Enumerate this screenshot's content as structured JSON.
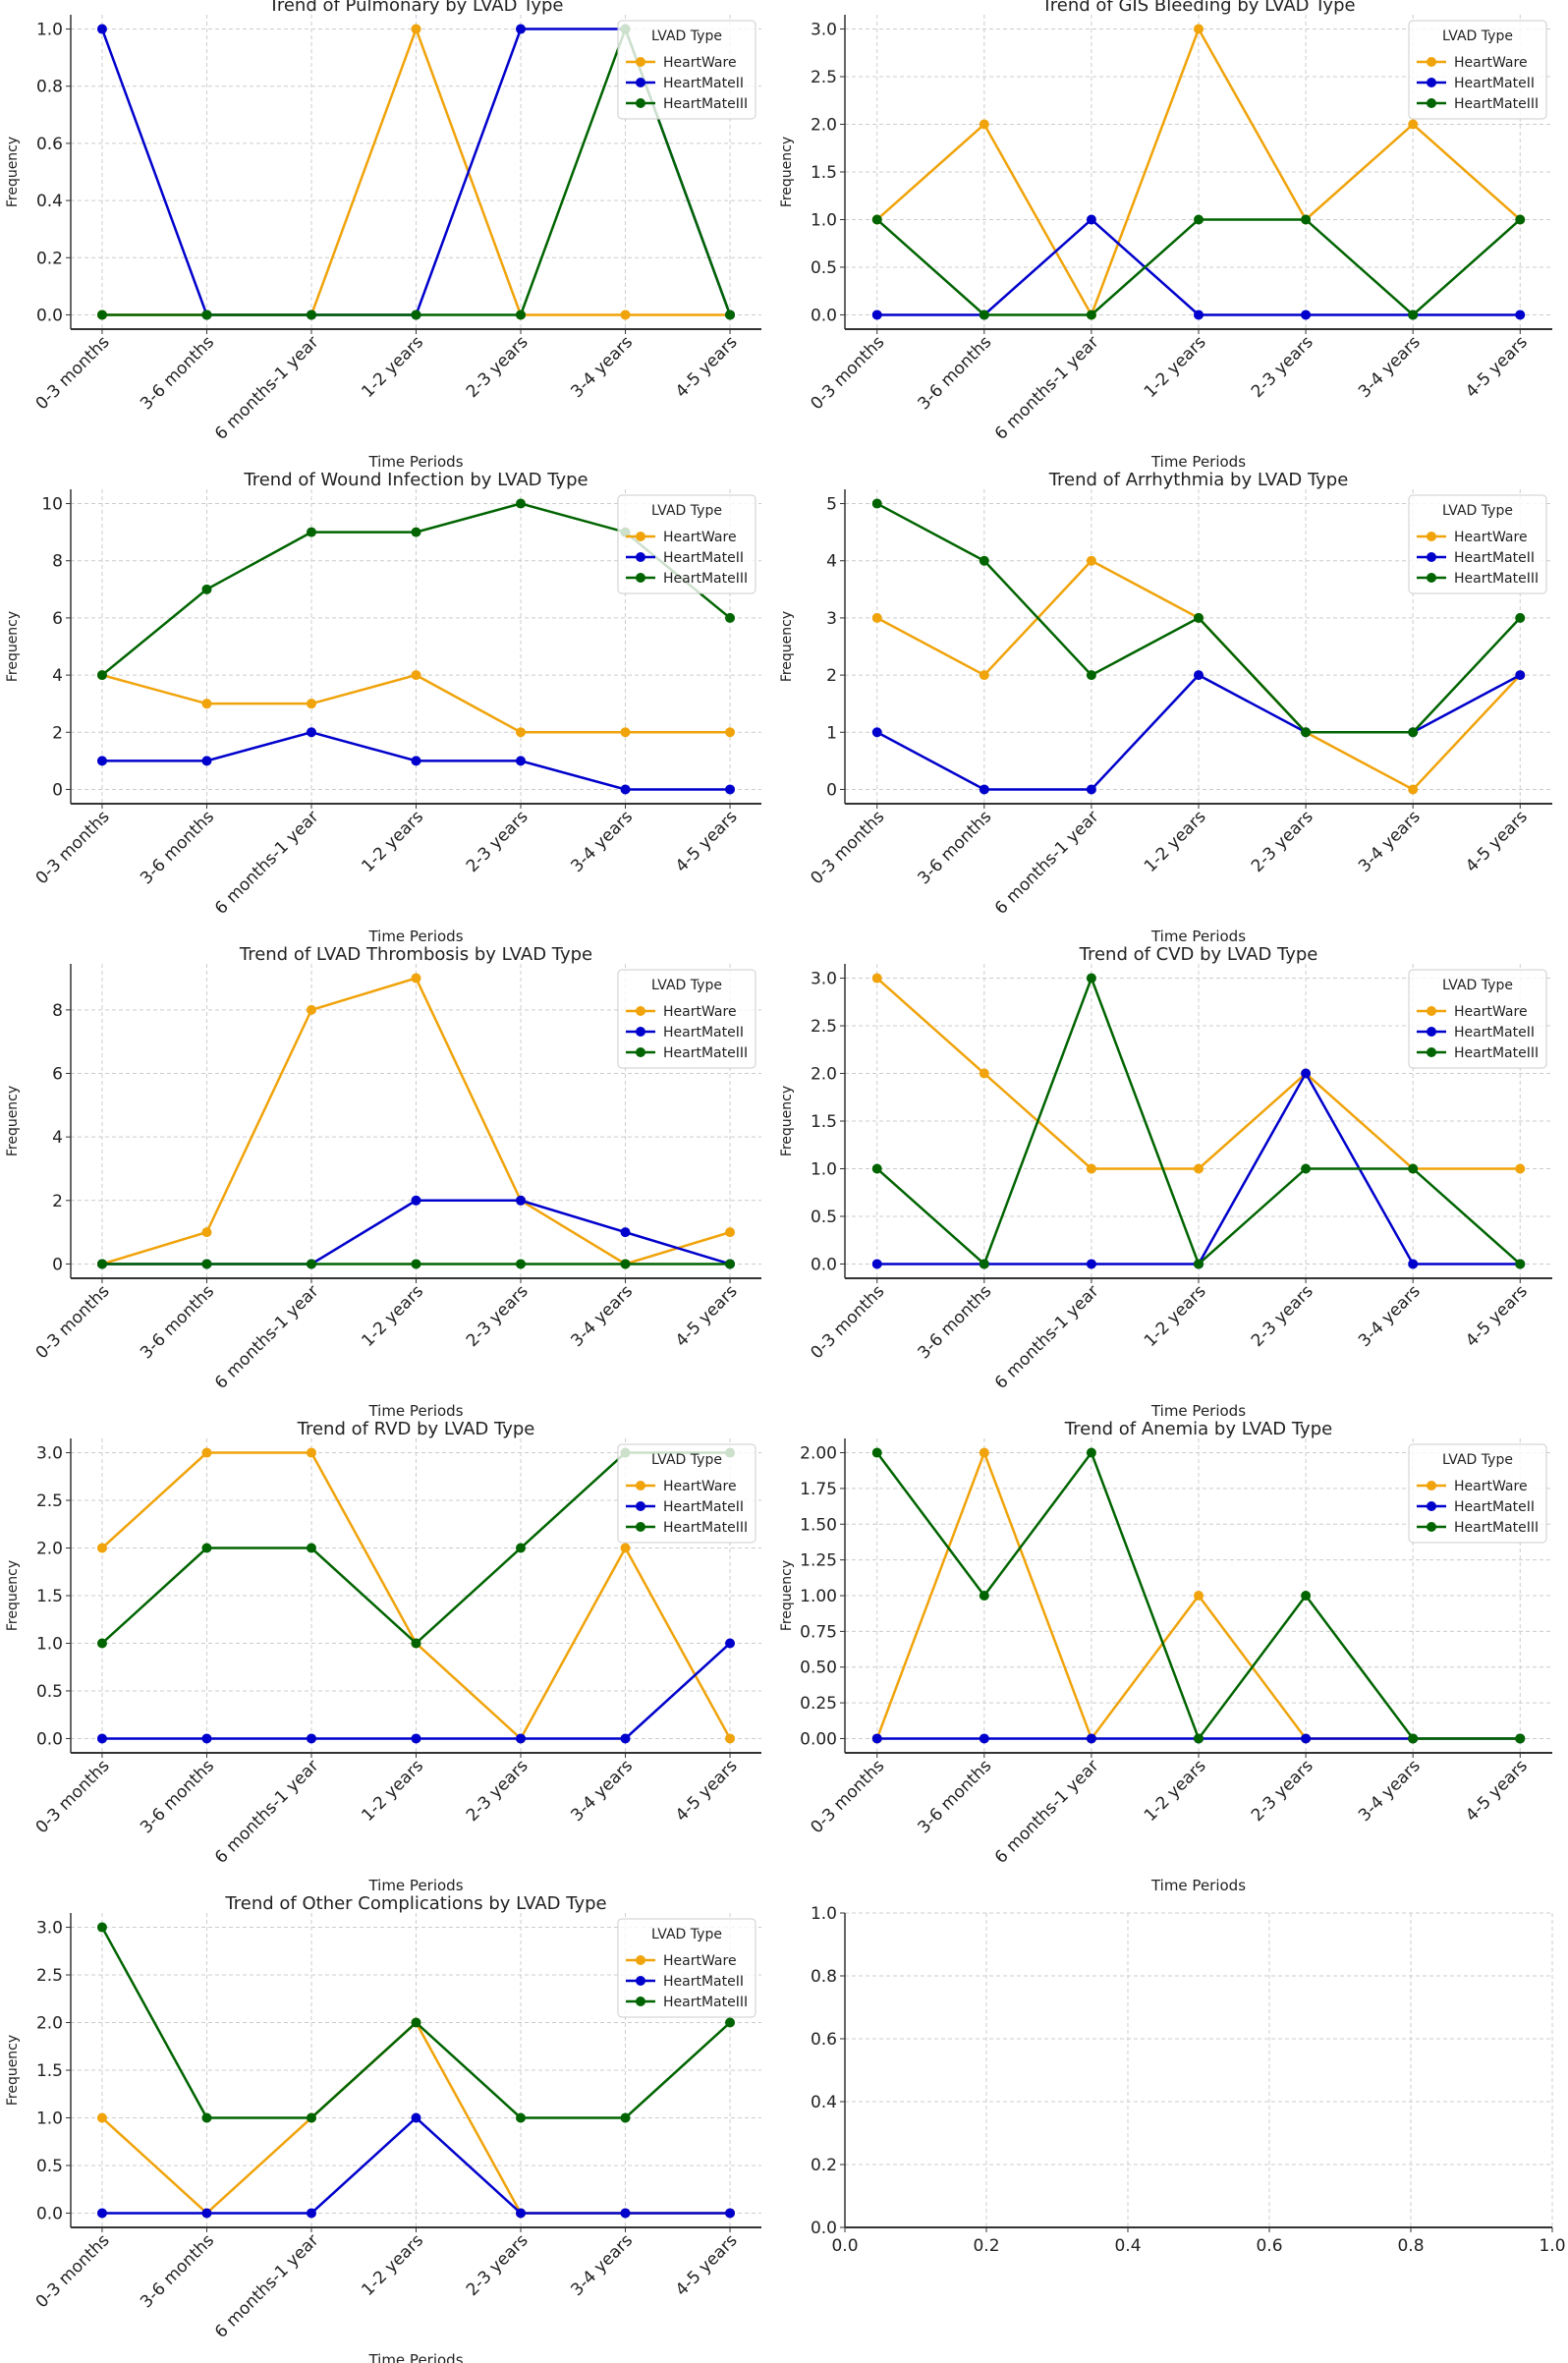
{
  "colors": {
    "HeartWare": "#f0a30a",
    "HeartMateII": "#0000cc",
    "HeartMateIII": "#006400",
    "grid": "#cccccc"
  },
  "chart_data": [
    {
      "type": "line",
      "title": "Trend of Pulmonary by LVAD Type",
      "xlabel": "Time Periods",
      "ylabel": "Frequency",
      "legend_title": "LVAD Type",
      "legend": "top-right",
      "grid": true,
      "categories": [
        "0-3 months",
        "3-6 months",
        "6 months-1 year",
        "1-2 years",
        "2-3 years",
        "3-4 years",
        "4-5 years"
      ],
      "yticks": [
        0.0,
        0.2,
        0.4,
        0.6,
        0.8,
        1.0
      ],
      "ytick_labels": [
        "0.0",
        "0.2",
        "0.4",
        "0.6",
        "0.8",
        "1.0"
      ],
      "ylim": [
        -0.05,
        1.05
      ],
      "series": [
        {
          "name": "HeartWare",
          "values": [
            0,
            0,
            0,
            1,
            0,
            0,
            0
          ]
        },
        {
          "name": "HeartMateII",
          "values": [
            1,
            0,
            0,
            0,
            1,
            1,
            0
          ]
        },
        {
          "name": "HeartMateIII",
          "values": [
            0,
            0,
            0,
            0,
            0,
            1,
            0
          ]
        }
      ]
    },
    {
      "type": "line",
      "title": "Trend of GIS Bleeding by LVAD Type",
      "xlabel": "Time Periods",
      "ylabel": "Frequency",
      "legend_title": "LVAD Type",
      "legend": "top-right",
      "grid": true,
      "categories": [
        "0-3 months",
        "3-6 months",
        "6 months-1 year",
        "1-2 years",
        "2-3 years",
        "3-4 years",
        "4-5 years"
      ],
      "yticks": [
        0,
        0.5,
        1,
        1.5,
        2,
        2.5,
        3
      ],
      "ytick_labels": [
        "0.0",
        "0.5",
        "1.0",
        "1.5",
        "2.0",
        "2.5",
        "3.0"
      ],
      "ylim": [
        -0.15,
        3.15
      ],
      "series": [
        {
          "name": "HeartWare",
          "values": [
            1,
            2,
            0,
            3,
            1,
            2,
            1
          ]
        },
        {
          "name": "HeartMateII",
          "values": [
            0,
            0,
            1,
            0,
            0,
            0,
            0
          ]
        },
        {
          "name": "HeartMateIII",
          "values": [
            1,
            0,
            0,
            1,
            1,
            0,
            1
          ]
        }
      ]
    },
    {
      "type": "line",
      "title": "Trend of Wound Infection by LVAD Type",
      "xlabel": "Time Periods",
      "ylabel": "Frequency",
      "legend_title": "LVAD Type",
      "legend": "top-right",
      "grid": true,
      "categories": [
        "0-3 months",
        "3-6 months",
        "6 months-1 year",
        "1-2 years",
        "2-3 years",
        "3-4 years",
        "4-5 years"
      ],
      "yticks": [
        0,
        2,
        4,
        6,
        8,
        10
      ],
      "ytick_labels": [
        "0",
        "2",
        "4",
        "6",
        "8",
        "10"
      ],
      "ylim": [
        -0.5,
        10.5
      ],
      "series": [
        {
          "name": "HeartWare",
          "values": [
            4,
            3,
            3,
            4,
            2,
            2,
            2
          ]
        },
        {
          "name": "HeartMateII",
          "values": [
            1,
            1,
            2,
            1,
            1,
            0,
            0
          ]
        },
        {
          "name": "HeartMateIII",
          "values": [
            4,
            7,
            9,
            9,
            10,
            9,
            6
          ]
        }
      ]
    },
    {
      "type": "line",
      "title": "Trend of Arrhythmia by LVAD Type",
      "xlabel": "Time Periods",
      "ylabel": "Frequency",
      "legend_title": "LVAD Type",
      "legend": "top-right",
      "grid": true,
      "categories": [
        "0-3 months",
        "3-6 months",
        "6 months-1 year",
        "1-2 years",
        "2-3 years",
        "3-4 years",
        "4-5 years"
      ],
      "yticks": [
        0,
        1,
        2,
        3,
        4,
        5
      ],
      "ytick_labels": [
        "0",
        "1",
        "2",
        "3",
        "4",
        "5"
      ],
      "ylim": [
        -0.25,
        5.25
      ],
      "series": [
        {
          "name": "HeartWare",
          "values": [
            3,
            2,
            4,
            3,
            1,
            0,
            2
          ]
        },
        {
          "name": "HeartMateII",
          "values": [
            1,
            0,
            0,
            2,
            1,
            1,
            2
          ]
        },
        {
          "name": "HeartMateIII",
          "values": [
            5,
            4,
            2,
            3,
            1,
            1,
            3
          ]
        }
      ]
    },
    {
      "type": "line",
      "title": "Trend of LVAD Thrombosis by LVAD Type",
      "xlabel": "Time Periods",
      "ylabel": "Frequency",
      "legend_title": "LVAD Type",
      "legend": "top-right",
      "grid": true,
      "categories": [
        "0-3 months",
        "3-6 months",
        "6 months-1 year",
        "1-2 years",
        "2-3 years",
        "3-4 years",
        "4-5 years"
      ],
      "yticks": [
        0,
        2,
        4,
        6,
        8
      ],
      "ytick_labels": [
        "0",
        "2",
        "4",
        "6",
        "8"
      ],
      "ylim": [
        -0.45,
        9.45
      ],
      "series": [
        {
          "name": "HeartWare",
          "values": [
            0,
            1,
            8,
            9,
            2,
            0,
            1
          ]
        },
        {
          "name": "HeartMateII",
          "values": [
            0,
            0,
            0,
            2,
            2,
            1,
            0
          ]
        },
        {
          "name": "HeartMateIII",
          "values": [
            0,
            0,
            0,
            0,
            0,
            0,
            0
          ]
        }
      ]
    },
    {
      "type": "line",
      "title": "Trend of CVD by LVAD Type",
      "xlabel": "Time Periods",
      "ylabel": "Frequency",
      "legend_title": "LVAD Type",
      "legend": "top-right",
      "grid": true,
      "categories": [
        "0-3 months",
        "3-6 months",
        "6 months-1 year",
        "1-2 years",
        "2-3 years",
        "3-4 years",
        "4-5 years"
      ],
      "yticks": [
        0,
        0.5,
        1,
        1.5,
        2,
        2.5,
        3
      ],
      "ytick_labels": [
        "0.0",
        "0.5",
        "1.0",
        "1.5",
        "2.0",
        "2.5",
        "3.0"
      ],
      "ylim": [
        -0.15,
        3.15
      ],
      "series": [
        {
          "name": "HeartWare",
          "values": [
            3,
            2,
            1,
            1,
            2,
            1,
            1
          ]
        },
        {
          "name": "HeartMateII",
          "values": [
            0,
            0,
            0,
            0,
            2,
            0,
            0
          ]
        },
        {
          "name": "HeartMateIII",
          "values": [
            1,
            0,
            3,
            0,
            1,
            1,
            0
          ]
        }
      ]
    },
    {
      "type": "line",
      "title": "Trend of RVD by LVAD Type",
      "xlabel": "Time Periods",
      "ylabel": "Frequency",
      "legend_title": "LVAD Type",
      "legend": "top-right",
      "grid": true,
      "categories": [
        "0-3 months",
        "3-6 months",
        "6 months-1 year",
        "1-2 years",
        "2-3 years",
        "3-4 years",
        "4-5 years"
      ],
      "yticks": [
        0,
        0.5,
        1,
        1.5,
        2,
        2.5,
        3
      ],
      "ytick_labels": [
        "0.0",
        "0.5",
        "1.0",
        "1.5",
        "2.0",
        "2.5",
        "3.0"
      ],
      "ylim": [
        -0.15,
        3.15
      ],
      "series": [
        {
          "name": "HeartWare",
          "values": [
            2,
            3,
            3,
            1,
            0,
            2,
            0
          ]
        },
        {
          "name": "HeartMateII",
          "values": [
            0,
            0,
            0,
            0,
            0,
            0,
            1
          ]
        },
        {
          "name": "HeartMateIII",
          "values": [
            1,
            2,
            2,
            1,
            2,
            3,
            3
          ]
        }
      ]
    },
    {
      "type": "line",
      "title": "Trend of Anemia by LVAD Type",
      "xlabel": "Time Periods",
      "ylabel": "Frequency",
      "legend_title": "LVAD Type",
      "legend": "top-right",
      "grid": true,
      "categories": [
        "0-3 months",
        "3-6 months",
        "6 months-1 year",
        "1-2 years",
        "2-3 years",
        "3-4 years",
        "4-5 years"
      ],
      "yticks": [
        0,
        0.25,
        0.5,
        0.75,
        1,
        1.25,
        1.5,
        1.75,
        2
      ],
      "ytick_labels": [
        "0.00",
        "0.25",
        "0.50",
        "0.75",
        "1.00",
        "1.25",
        "1.50",
        "1.75",
        "2.00"
      ],
      "ylim": [
        -0.1,
        2.1
      ],
      "series": [
        {
          "name": "HeartWare",
          "values": [
            0,
            2,
            0,
            1,
            0,
            0,
            0
          ]
        },
        {
          "name": "HeartMateII",
          "values": [
            0,
            0,
            0,
            0,
            0,
            0,
            0
          ]
        },
        {
          "name": "HeartMateIII",
          "values": [
            2,
            1,
            2,
            0,
            1,
            0,
            0
          ]
        }
      ]
    },
    {
      "type": "line",
      "title": "Trend of Other Complications by LVAD Type",
      "xlabel": "Time Periods",
      "ylabel": "Frequency",
      "legend_title": "LVAD Type",
      "legend": "top-right",
      "grid": true,
      "categories": [
        "0-3 months",
        "3-6 months",
        "6 months-1 year",
        "1-2 years",
        "2-3 years",
        "3-4 years",
        "4-5 years"
      ],
      "yticks": [
        0,
        0.5,
        1,
        1.5,
        2,
        2.5,
        3
      ],
      "ytick_labels": [
        "0.0",
        "0.5",
        "1.0",
        "1.5",
        "2.0",
        "2.5",
        "3.0"
      ],
      "ylim": [
        -0.15,
        3.15
      ],
      "series": [
        {
          "name": "HeartWare",
          "values": [
            1,
            0,
            1,
            2,
            0,
            0,
            0
          ]
        },
        {
          "name": "HeartMateII",
          "values": [
            0,
            0,
            0,
            1,
            0,
            0,
            0
          ]
        },
        {
          "name": "HeartMateIII",
          "values": [
            3,
            1,
            1,
            2,
            1,
            1,
            2
          ]
        }
      ]
    },
    {
      "type": "empty",
      "grid": true,
      "xlim": [
        0,
        1
      ],
      "ylim": [
        0,
        1
      ],
      "xticks": [
        0,
        0.2,
        0.4,
        0.6,
        0.8,
        1.0
      ],
      "xtick_labels": [
        "0.0",
        "0.2",
        "0.4",
        "0.6",
        "0.8",
        "1.0"
      ],
      "yticks": [
        0,
        0.2,
        0.4,
        0.6,
        0.8,
        1.0
      ],
      "ytick_labels": [
        "0.0",
        "0.2",
        "0.4",
        "0.6",
        "0.8",
        "1.0"
      ]
    }
  ]
}
